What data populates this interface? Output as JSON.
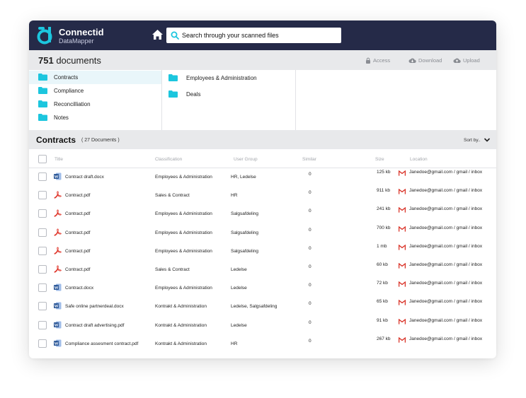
{
  "app": {
    "name": "Connectid",
    "subtitle": "DataMapper"
  },
  "search": {
    "placeholder": "Search through your scanned files"
  },
  "docbar": {
    "count": "751",
    "count_label": "documents",
    "actions": [
      "Access",
      "Download",
      "Upload"
    ]
  },
  "folders": {
    "column1": [
      "Contracts",
      "Compliance",
      "Reconcilliation",
      "Notes"
    ],
    "column2": [
      "Employees & Administration",
      "Deals"
    ]
  },
  "section": {
    "title": "Contracts",
    "count": "( 27 Documents )",
    "sort_label": "Sort by.."
  },
  "table": {
    "columns": [
      "Title",
      "Classification",
      "User Group",
      "Similar",
      "Size",
      "Location"
    ],
    "rows": [
      {
        "type": "word",
        "title": "Contract draft.docx",
        "classification": "Employees & Administration",
        "group": "HR, Ledelse",
        "similar": "0",
        "size": "125 kb",
        "location": "Janedoe@gmail.com / gmail / inbox"
      },
      {
        "type": "pdf",
        "title": "Contract.pdf",
        "classification": "Sales & Contract",
        "group": "HR",
        "similar": "0",
        "size": "911 kb",
        "location": "Janedoe@gmail.com / gmail / inbox"
      },
      {
        "type": "pdf",
        "title": "Contract.pdf",
        "classification": "Employees & Administration",
        "group": "Salgsafdeling",
        "similar": "0",
        "size": "241 kb",
        "location": "Janedoe@gmail.com / gmail / inbox"
      },
      {
        "type": "pdf",
        "title": "Contract.pdf",
        "classification": "Employees & Administration",
        "group": "Salgsafdeling",
        "similar": "0",
        "size": "700 kb",
        "location": "Janedoe@gmail.com / gmail / inbox"
      },
      {
        "type": "pdf",
        "title": "Contract.pdf",
        "classification": "Employees & Administration",
        "group": "Salgsafdeling",
        "similar": "0",
        "size": "1 mb",
        "location": "Janedoe@gmail.com / gmail / inbox"
      },
      {
        "type": "pdf",
        "title": "Contract.pdf",
        "classification": "Sales & Contract",
        "group": "Ledelse",
        "similar": "0",
        "size": "60 kb",
        "location": "Janedoe@gmail.com / gmail / inbox"
      },
      {
        "type": "word",
        "title": "Contract.docx",
        "classification": "Employees & Administration",
        "group": "Ledelse",
        "similar": "0",
        "size": "72 kb",
        "location": "Janedoe@gmail.com / gmail / inbox"
      },
      {
        "type": "word",
        "title": "Safe online partnerdeal.docx",
        "classification": "Kontrakt & Administration",
        "group": "Ledelse, Salgsafdeling",
        "similar": "0",
        "size": "65 kb",
        "location": "Janedoe@gmail.com / gmail / inbox"
      },
      {
        "type": "word",
        "title": "Contract draft advertising.pdf",
        "classification": "Kontrakt & Administration",
        "group": "Ledelse",
        "similar": "0",
        "size": "91 kb",
        "location": "Janedoe@gmail.com / gmail / inbox"
      },
      {
        "type": "word",
        "title": "Compliance assesment contract.pdf",
        "classification": "Kontrakt & Administration",
        "group": "HR",
        "similar": "0",
        "size": "267 kb",
        "location": "Janedoe@gmail.com / gmail / inbox"
      }
    ]
  },
  "colors": {
    "navbar": "#252a48",
    "accent": "#1cc6de",
    "panel": "#e8e9eb",
    "word": "#2b5797",
    "pdf": "#e03a2f",
    "gmail": "#d93025"
  }
}
